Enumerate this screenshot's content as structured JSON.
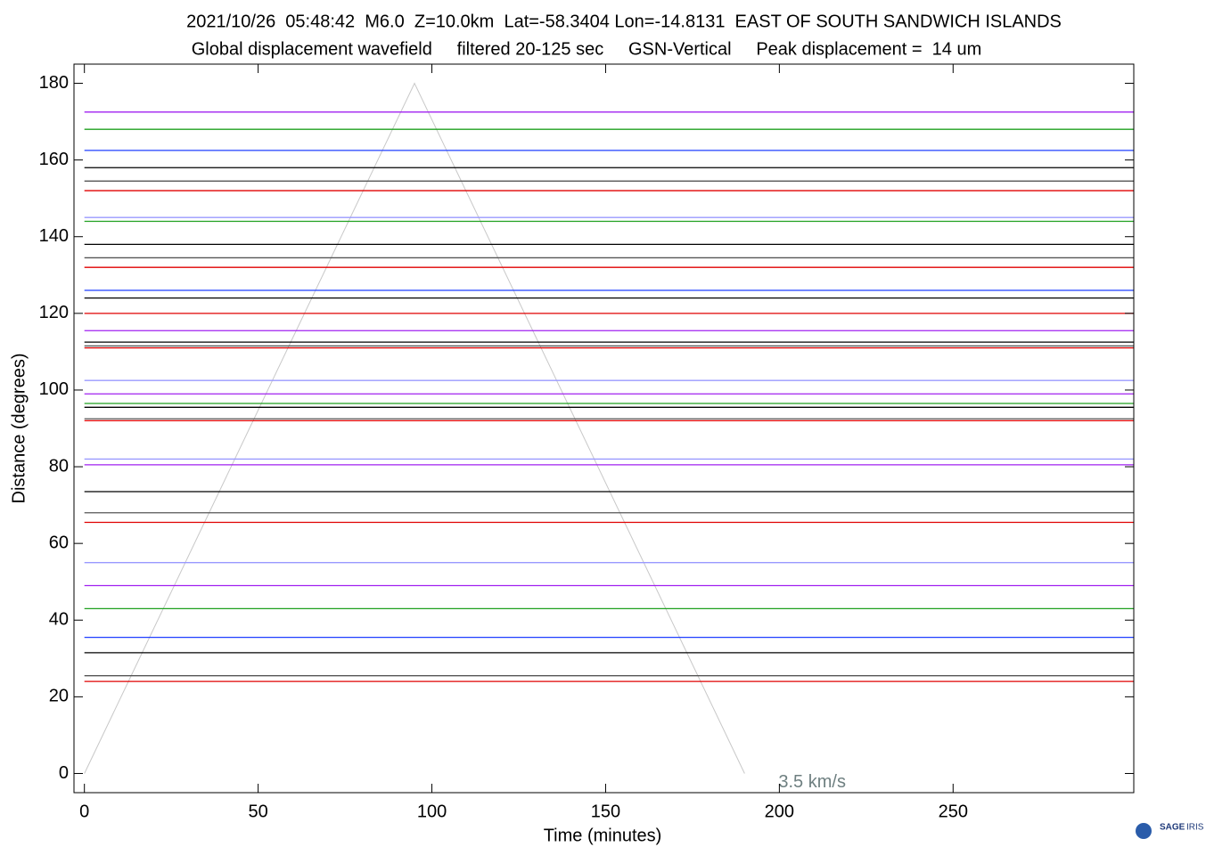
{
  "chart_data": {
    "type": "record-section",
    "title": "2021/10/26  05:48:42  M6.0  Z=10.0km  Lat=-58.3404 Lon=-14.8131  EAST OF SOUTH SANDWICH ISLANDS",
    "subtitle": "Global displacement wavefield     filtered 20-125 sec     GSN-Vertical     Peak displacement =  14 um",
    "x_label": "Time (minutes)",
    "y_label": "Distance (degrees)",
    "xlim": [
      -3,
      302
    ],
    "xticks": [
      0,
      50,
      100,
      150,
      200,
      250
    ],
    "ylim": [
      -5,
      185
    ],
    "yticks": [
      0,
      20,
      40,
      60,
      80,
      100,
      120,
      140,
      160,
      180
    ],
    "reference_line": {
      "label": "3.5 km/s",
      "color": "#c8c8c8",
      "label_color": "#6e7f80",
      "x": [
        0,
        95,
        190
      ],
      "y": [
        0,
        180,
        0
      ]
    },
    "traces": [
      {
        "distance": 172.5,
        "color": "#a020f0"
      },
      {
        "distance": 168,
        "color": "#1fa01f"
      },
      {
        "distance": 162.5,
        "color": "#1f3fff"
      },
      {
        "distance": 158,
        "color": "#000000"
      },
      {
        "distance": 154.5,
        "color": "#555555"
      },
      {
        "distance": 152,
        "color": "#e00000"
      },
      {
        "distance": 145,
        "color": "#9999ff"
      },
      {
        "distance": 144,
        "color": "#1fa01f"
      },
      {
        "distance": 138,
        "color": "#000000"
      },
      {
        "distance": 134.5,
        "color": "#555555"
      },
      {
        "distance": 132,
        "color": "#e00000"
      },
      {
        "distance": 126,
        "color": "#1f3fff"
      },
      {
        "distance": 124,
        "color": "#000000"
      },
      {
        "distance": 120,
        "color": "#e00000"
      },
      {
        "distance": 115.5,
        "color": "#a020f0"
      },
      {
        "distance": 112.5,
        "color": "#000000"
      },
      {
        "distance": 111.5,
        "color": "#555555"
      },
      {
        "distance": 111,
        "color": "#e00000"
      },
      {
        "distance": 102.5,
        "color": "#9999ff"
      },
      {
        "distance": 99,
        "color": "#a020f0"
      },
      {
        "distance": 96.5,
        "color": "#1fa01f"
      },
      {
        "distance": 95.5,
        "color": "#000000"
      },
      {
        "distance": 92.5,
        "color": "#555555"
      },
      {
        "distance": 92,
        "color": "#e00000"
      },
      {
        "distance": 82,
        "color": "#9999ff"
      },
      {
        "distance": 80.5,
        "color": "#a020f0"
      },
      {
        "distance": 73.5,
        "color": "#000000"
      },
      {
        "distance": 68,
        "color": "#555555"
      },
      {
        "distance": 65.5,
        "color": "#e00000"
      },
      {
        "distance": 55,
        "color": "#9999ff"
      },
      {
        "distance": 49,
        "color": "#a020f0"
      },
      {
        "distance": 43,
        "color": "#1fa01f"
      },
      {
        "distance": 35.5,
        "color": "#1f3fff"
      },
      {
        "distance": 31.5,
        "color": "#000000"
      },
      {
        "distance": 25.5,
        "color": "#555555"
      },
      {
        "distance": 24,
        "color": "#e00000"
      }
    ]
  },
  "logo": {
    "name": "SAGE",
    "org": "IRIS"
  }
}
